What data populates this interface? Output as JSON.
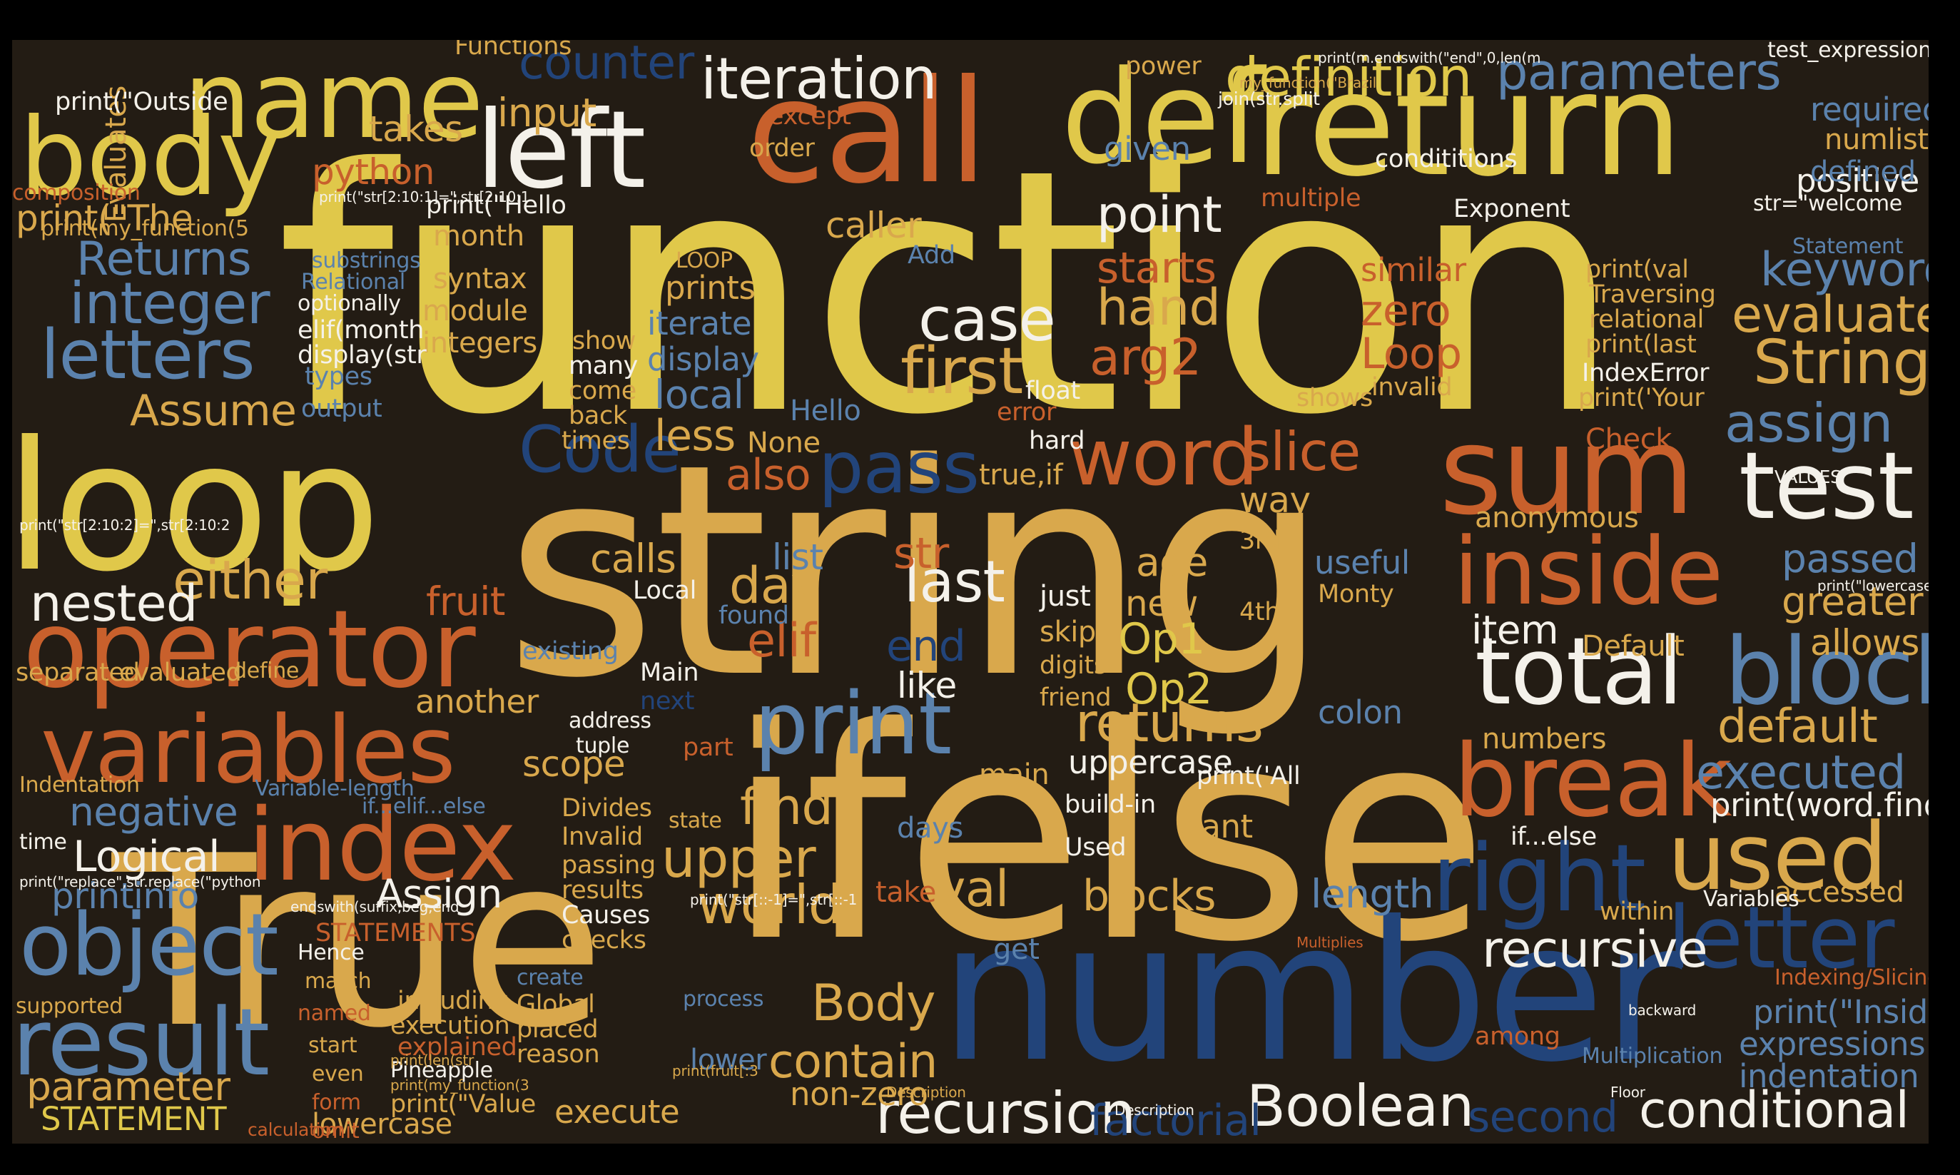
{
  "palette": {
    "yellow": "#e0c84a",
    "gold": "#d9a84c",
    "orange": "#c8602c",
    "white": "#f4f1ea",
    "blue": "#5b82ad",
    "navy": "#22447a",
    "background": "#231c14"
  },
  "words": [
    {
      "text": "function",
      "color": "yellow"
    },
    {
      "text": "string",
      "color": "gold"
    },
    {
      "text": "ifelse",
      "color": "gold"
    },
    {
      "text": "True",
      "color": "gold"
    },
    {
      "text": "number",
      "color": "navy"
    },
    {
      "text": "call",
      "color": "orange"
    },
    {
      "text": "return",
      "color": "yellow"
    },
    {
      "text": "def",
      "color": "yellow"
    },
    {
      "text": "loop",
      "color": "yellow"
    },
    {
      "text": "sum",
      "color": "orange"
    },
    {
      "text": "operator",
      "color": "orange"
    },
    {
      "text": "total",
      "color": "white"
    },
    {
      "text": "left",
      "color": "white"
    },
    {
      "text": "name",
      "color": "yellow"
    },
    {
      "text": "body",
      "color": "yellow"
    },
    {
      "text": "variables",
      "color": "orange"
    },
    {
      "text": "index",
      "color": "orange"
    },
    {
      "text": "inside",
      "color": "orange"
    },
    {
      "text": "test",
      "color": "white"
    },
    {
      "text": "break",
      "color": "orange"
    },
    {
      "text": "block",
      "color": "blue"
    },
    {
      "text": "print",
      "color": "blue"
    },
    {
      "text": "used",
      "color": "gold"
    },
    {
      "text": "right",
      "color": "navy"
    },
    {
      "text": "letter",
      "color": "navy"
    },
    {
      "text": "result",
      "color": "blue"
    },
    {
      "text": "object",
      "color": "blue"
    },
    {
      "text": "word",
      "color": "orange"
    },
    {
      "text": "pass",
      "color": "navy"
    },
    {
      "text": "iteration",
      "color": "white"
    },
    {
      "text": "definition",
      "color": "yellow"
    },
    {
      "text": "parameters",
      "color": "blue"
    },
    {
      "text": "counter",
      "color": "navy"
    },
    {
      "text": "input",
      "color": "gold"
    },
    {
      "text": "case",
      "color": "white"
    },
    {
      "text": "first",
      "color": "gold"
    },
    {
      "text": "point",
      "color": "white"
    },
    {
      "text": "hand",
      "color": "gold"
    },
    {
      "text": "arg2",
      "color": "orange"
    },
    {
      "text": "starts",
      "color": "orange"
    },
    {
      "text": "slice",
      "color": "orange"
    },
    {
      "text": "Code",
      "color": "navy"
    },
    {
      "text": "also",
      "color": "orange"
    },
    {
      "text": "last",
      "color": "white"
    },
    {
      "text": "either",
      "color": "gold"
    },
    {
      "text": "nested",
      "color": "white"
    },
    {
      "text": "letters",
      "color": "blue"
    },
    {
      "text": "integer",
      "color": "blue"
    },
    {
      "text": "Returns",
      "color": "blue"
    },
    {
      "text": "Assume",
      "color": "gold"
    },
    {
      "text": "recursion",
      "color": "white"
    },
    {
      "text": "Boolean",
      "color": "white"
    },
    {
      "text": "conditional",
      "color": "white"
    },
    {
      "text": "recursive",
      "color": "white"
    },
    {
      "text": "returns",
      "color": "gold"
    },
    {
      "text": "upper",
      "color": "gold"
    },
    {
      "text": "world",
      "color": "gold"
    },
    {
      "text": "find",
      "color": "gold"
    },
    {
      "text": "Body",
      "color": "gold"
    },
    {
      "text": "contain",
      "color": "gold"
    },
    {
      "text": "blocks",
      "color": "gold"
    },
    {
      "text": "val",
      "color": "gold"
    },
    {
      "text": "day",
      "color": "gold"
    },
    {
      "text": "str",
      "color": "orange"
    },
    {
      "text": "end",
      "color": "navy"
    },
    {
      "text": "elif",
      "color": "orange"
    },
    {
      "text": "Op1",
      "color": "yellow"
    },
    {
      "text": "Op2",
      "color": "yellow"
    },
    {
      "text": "age",
      "color": "gold"
    },
    {
      "text": "new",
      "color": "gold"
    },
    {
      "text": "item",
      "color": "white"
    },
    {
      "text": "like",
      "color": "white"
    },
    {
      "text": "calls",
      "color": "gold"
    },
    {
      "text": "list",
      "color": "blue"
    },
    {
      "text": "fruit",
      "color": "orange"
    },
    {
      "text": "local",
      "color": "blue"
    },
    {
      "text": "less",
      "color": "gold"
    },
    {
      "text": "iterate",
      "color": "blue"
    },
    {
      "text": "display",
      "color": "blue"
    },
    {
      "text": "prints",
      "color": "gold"
    },
    {
      "text": "zero",
      "color": "orange"
    },
    {
      "text": "Loop",
      "color": "orange"
    },
    {
      "text": "similar",
      "color": "orange"
    },
    {
      "text": "given",
      "color": "blue"
    },
    {
      "text": "String",
      "color": "gold"
    },
    {
      "text": "evaluates",
      "color": "gold"
    },
    {
      "text": "keyword",
      "color": "blue"
    },
    {
      "text": "assign",
      "color": "blue"
    },
    {
      "text": "Description",
      "color": "gold"
    },
    {
      "text": "passed",
      "color": "blue"
    },
    {
      "text": "greater",
      "color": "gold"
    },
    {
      "text": "allows",
      "color": "gold"
    },
    {
      "text": "default",
      "color": "gold"
    },
    {
      "text": "executed",
      "color": "blue"
    },
    {
      "text": "positive",
      "color": "white"
    },
    {
      "text": "required",
      "color": "blue"
    },
    {
      "text": "numlist",
      "color": "gold"
    },
    {
      "text": "defined",
      "color": "blue"
    },
    {
      "text": "accessed",
      "color": "gold"
    },
    {
      "text": "indentation",
      "color": "blue"
    },
    {
      "text": "expressions",
      "color": "blue"
    },
    {
      "text": "Multiplication",
      "color": "blue"
    },
    {
      "text": "second",
      "color": "navy"
    },
    {
      "text": "factorial",
      "color": "navy"
    },
    {
      "text": "length",
      "color": "blue"
    },
    {
      "text": "uppercase",
      "color": "white"
    },
    {
      "text": "scope",
      "color": "gold"
    },
    {
      "text": "another",
      "color": "gold"
    },
    {
      "text": "execute",
      "color": "gold"
    },
    {
      "text": "non-zero",
      "color": "gold"
    },
    {
      "text": "lower",
      "color": "blue"
    },
    {
      "text": "process",
      "color": "blue"
    },
    {
      "text": "Logical",
      "color": "white"
    },
    {
      "text": "Assign",
      "color": "white"
    },
    {
      "text": "negative",
      "color": "blue"
    },
    {
      "text": "printinfo",
      "color": "blue"
    },
    {
      "text": "parameter",
      "color": "gold"
    },
    {
      "text": "STATEMENT",
      "color": "yellow"
    },
    {
      "text": "lowercase",
      "color": "gold"
    },
    {
      "text": "print(\"The",
      "color": "gold"
    },
    {
      "text": "python",
      "color": "orange"
    },
    {
      "text": "takes",
      "color": "gold"
    },
    {
      "text": "Evaluates",
      "color": "gold"
    },
    {
      "text": "month",
      "color": "gold"
    },
    {
      "text": "syntax",
      "color": "gold"
    },
    {
      "text": "module",
      "color": "gold"
    },
    {
      "text": "integers",
      "color": "gold"
    },
    {
      "text": "output",
      "color": "blue"
    },
    {
      "text": "types",
      "color": "blue"
    },
    {
      "text": "order",
      "color": "gold"
    },
    {
      "text": "except",
      "color": "orange"
    },
    {
      "text": "caller",
      "color": "gold"
    },
    {
      "text": "Add",
      "color": "blue"
    },
    {
      "text": "power",
      "color": "gold"
    },
    {
      "text": "multiple",
      "color": "orange"
    },
    {
      "text": "way",
      "color": "gold"
    },
    {
      "text": "useful",
      "color": "blue"
    },
    {
      "text": "anonymous",
      "color": "gold"
    },
    {
      "text": "true,if",
      "color": "gold"
    },
    {
      "text": "just",
      "color": "white"
    },
    {
      "text": "skip",
      "color": "gold"
    },
    {
      "text": "digits",
      "color": "gold"
    },
    {
      "text": "friend",
      "color": "gold"
    },
    {
      "text": "want",
      "color": "gold"
    },
    {
      "text": "main",
      "color": "gold"
    },
    {
      "text": "days",
      "color": "blue"
    },
    {
      "text": "take",
      "color": "orange"
    },
    {
      "text": "get",
      "color": "blue"
    },
    {
      "text": "Used",
      "color": "white"
    },
    {
      "text": "build-in",
      "color": "white"
    },
    {
      "text": "match",
      "color": "gold"
    },
    {
      "text": "named",
      "color": "orange"
    },
    {
      "text": "start",
      "color": "gold"
    },
    {
      "text": "even",
      "color": "gold"
    },
    {
      "text": "form",
      "color": "orange"
    },
    {
      "text": "omit",
      "color": "orange"
    },
    {
      "text": "explained",
      "color": "orange"
    },
    {
      "text": "including",
      "color": "gold"
    },
    {
      "text": "execution",
      "color": "gold"
    },
    {
      "text": "Pineapple",
      "color": "white"
    },
    {
      "text": "create",
      "color": "blue"
    },
    {
      "text": "Global",
      "color": "gold"
    },
    {
      "text": "placed",
      "color": "gold"
    },
    {
      "text": "reason",
      "color": "gold"
    },
    {
      "text": "Hence",
      "color": "white"
    },
    {
      "text": "supported",
      "color": "gold"
    },
    {
      "text": "STATEMENTS",
      "color": "orange"
    },
    {
      "text": "VALUES",
      "color": "white"
    },
    {
      "text": "Variables",
      "color": "white"
    },
    {
      "text": "Check",
      "color": "orange"
    },
    {
      "text": "IndexError",
      "color": "white"
    },
    {
      "text": "separated",
      "color": "gold"
    },
    {
      "text": "evaluated",
      "color": "gold"
    },
    {
      "text": "define",
      "color": "gold"
    },
    {
      "text": "Indentation",
      "color": "gold"
    },
    {
      "text": "time",
      "color": "white"
    },
    {
      "text": "Local",
      "color": "white"
    },
    {
      "text": "found",
      "color": "blue"
    },
    {
      "text": "existing",
      "color": "blue"
    },
    {
      "text": "Main",
      "color": "white"
    },
    {
      "text": "next",
      "color": "navy"
    },
    {
      "text": "address",
      "color": "white"
    },
    {
      "text": "tuple",
      "color": "white"
    },
    {
      "text": "part",
      "color": "orange"
    },
    {
      "text": "state",
      "color": "gold"
    },
    {
      "text": "Divides",
      "color": "gold"
    },
    {
      "text": "Invalid",
      "color": "gold"
    },
    {
      "text": "passing",
      "color": "gold"
    },
    {
      "text": "results",
      "color": "gold"
    },
    {
      "text": "Causes",
      "color": "white"
    },
    {
      "text": "checks",
      "color": "gold"
    },
    {
      "text": "Hello",
      "color": "blue"
    },
    {
      "text": "None",
      "color": "gold"
    },
    {
      "text": "many",
      "color": "white"
    },
    {
      "text": "come",
      "color": "gold"
    },
    {
      "text": "back",
      "color": "gold"
    },
    {
      "text": "times",
      "color": "gold"
    },
    {
      "text": "show",
      "color": "gold"
    },
    {
      "text": "error",
      "color": "orange"
    },
    {
      "text": "hard",
      "color": "white"
    },
    {
      "text": "float",
      "color": "white"
    },
    {
      "text": "3rd",
      "color": "gold"
    },
    {
      "text": "4th",
      "color": "gold"
    },
    {
      "text": "shows",
      "color": "gold"
    },
    {
      "text": "invalid",
      "color": "gold"
    },
    {
      "text": "colon",
      "color": "blue"
    },
    {
      "text": "numbers",
      "color": "gold"
    },
    {
      "text": "Default",
      "color": "gold"
    },
    {
      "text": "within",
      "color": "gold"
    },
    {
      "text": "Monty",
      "color": "gold"
    },
    {
      "text": "condititions",
      "color": "white"
    },
    {
      "text": "Exponent",
      "color": "white"
    },
    {
      "text": "relational",
      "color": "gold"
    },
    {
      "text": "Traversing",
      "color": "gold"
    },
    {
      "text": "LOOP",
      "color": "gold"
    },
    {
      "text": "optionally",
      "color": "white"
    },
    {
      "text": "substrings",
      "color": "blue"
    },
    {
      "text": "Relational",
      "color": "blue"
    },
    {
      "text": "composition",
      "color": "orange"
    },
    {
      "text": "Functions",
      "color": "gold"
    },
    {
      "text": "Statement",
      "color": "blue"
    },
    {
      "text": "Indexing/Slicing",
      "color": "orange"
    },
    {
      "text": "among",
      "color": "orange"
    },
    {
      "text": "print(\"Inside",
      "color": "blue"
    },
    {
      "text": "elif(month",
      "color": "white"
    },
    {
      "text": "display(str",
      "color": "white"
    },
    {
      "text": "print(\"Hello",
      "color": "white"
    },
    {
      "text": "print(my_function(5",
      "color": "gold"
    },
    {
      "text": "print(word.find('na",
      "color": "white"
    },
    {
      "text": "print(val",
      "color": "gold"
    },
    {
      "text": "print(last",
      "color": "gold"
    },
    {
      "text": "print('Your",
      "color": "gold"
    },
    {
      "text": "print(\"Outside",
      "color": "white"
    },
    {
      "text": "print(\"Value",
      "color": "gold"
    },
    {
      "text": "print('All",
      "color": "white"
    },
    {
      "text": "join(str.split",
      "color": "white"
    },
    {
      "text": "print(\"str[2:10:1]=\",str[2:10:1",
      "color": "white"
    },
    {
      "text": "print(\"str[2:10:2]=\",str[2:10:2",
      "color": "white"
    },
    {
      "text": "Variable-length",
      "color": "blue"
    },
    {
      "text": "if...elif...else",
      "color": "blue"
    },
    {
      "text": "if...else",
      "color": "white"
    },
    {
      "text": "print(\"str[::-1]=\",str[::-1",
      "color": "white"
    },
    {
      "text": "print(\"replace\",str.replace(\"python",
      "color": "white"
    },
    {
      "text": "Multiplies",
      "color": "orange"
    },
    {
      "text": "endswith(suffix,beg,end",
      "color": "white"
    },
    {
      "text": "print(my_function(3",
      "color": "gold"
    },
    {
      "text": "calculation",
      "color": "orange"
    },
    {
      "text": "my_function(\"Brazil",
      "color": "gold"
    },
    {
      "text": "test_expression",
      "color": "white"
    },
    {
      "text": "print(m.endswith(\"end\",0,len(m",
      "color": "white"
    },
    {
      "text": "str=\"welcome",
      "color": "white"
    },
    {
      "text": "print(fruit[:3",
      "color": "gold"
    },
    {
      "text": "print(len(str",
      "color": "gold"
    },
    {
      "text": "print(\"lowercase=\",str.lower",
      "color": "white"
    },
    {
      "text": "Floor",
      "color": "white"
    },
    {
      "text": "backward",
      "color": "white"
    },
    {
      "text": "Description",
      "color": "white"
    }
  ]
}
